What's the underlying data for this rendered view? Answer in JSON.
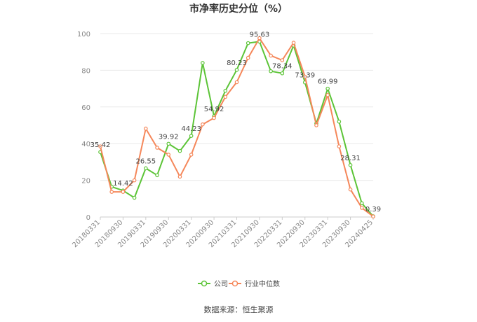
{
  "chart_data": {
    "type": "line",
    "title": "市净率历史分位（%）",
    "ylim": [
      0,
      100
    ],
    "yticks": [
      "0",
      "20",
      "40",
      "60",
      "80",
      "100"
    ],
    "xtick_labels": [
      "20180331",
      "20180930",
      "20190331",
      "20190930",
      "20200331",
      "20200930",
      "20210331",
      "20210930",
      "20220331",
      "20220930",
      "20230331",
      "20230930",
      "20240425"
    ],
    "x": [
      "20180331",
      "20180630",
      "20180930",
      "20181231",
      "20190331",
      "20190630",
      "20190930",
      "20191231",
      "20200331",
      "20200630",
      "20200930",
      "20201231",
      "20210331",
      "20210630",
      "20210930",
      "20211231",
      "20220331",
      "20220630",
      "20220930",
      "20221231",
      "20230331",
      "20230630",
      "20230930",
      "20231231",
      "20240425"
    ],
    "series": [
      {
        "name": "公司",
        "color": "#5cc437",
        "values": [
          35.42,
          16.5,
          14.42,
          10.5,
          26.55,
          22.8,
          39.92,
          36.0,
          44.23,
          84.0,
          54.92,
          68.8,
          80.23,
          94.8,
          95.63,
          79.5,
          78.34,
          93.5,
          73.39,
          51.0,
          69.99,
          52.0,
          28.31,
          7.5,
          0.39
        ]
      },
      {
        "name": "行业中位数",
        "color": "#f5875a",
        "values": [
          38.5,
          13.7,
          13.7,
          20.0,
          48.2,
          37.8,
          34.0,
          22.0,
          34.0,
          50.5,
          54.0,
          65.5,
          73.5,
          86.8,
          97.5,
          88.0,
          85.5,
          95.0,
          76.5,
          50.0,
          66.5,
          38.5,
          15.0,
          5.0,
          0.3
        ]
      }
    ],
    "data_labels": [
      {
        "series": 0,
        "index": 0,
        "text": "35.42"
      },
      {
        "series": 0,
        "index": 2,
        "text": "14.42"
      },
      {
        "series": 0,
        "index": 4,
        "text": "26.55"
      },
      {
        "series": 0,
        "index": 6,
        "text": "39.92"
      },
      {
        "series": 0,
        "index": 8,
        "text": "44.23"
      },
      {
        "series": 0,
        "index": 10,
        "text": "54.92"
      },
      {
        "series": 0,
        "index": 12,
        "text": "80.23"
      },
      {
        "series": 0,
        "index": 14,
        "text": "95.63"
      },
      {
        "series": 0,
        "index": 16,
        "text": "78.34"
      },
      {
        "series": 0,
        "index": 18,
        "text": "73.39"
      },
      {
        "series": 0,
        "index": 20,
        "text": "69.99"
      },
      {
        "series": 0,
        "index": 22,
        "text": "28.31"
      },
      {
        "series": 0,
        "index": 24,
        "text": "0.39"
      }
    ],
    "legend": {
      "position": "bottom",
      "items": [
        "公司",
        "行业中位数"
      ]
    },
    "grid": true,
    "source": "数据来源：恒生聚源"
  }
}
